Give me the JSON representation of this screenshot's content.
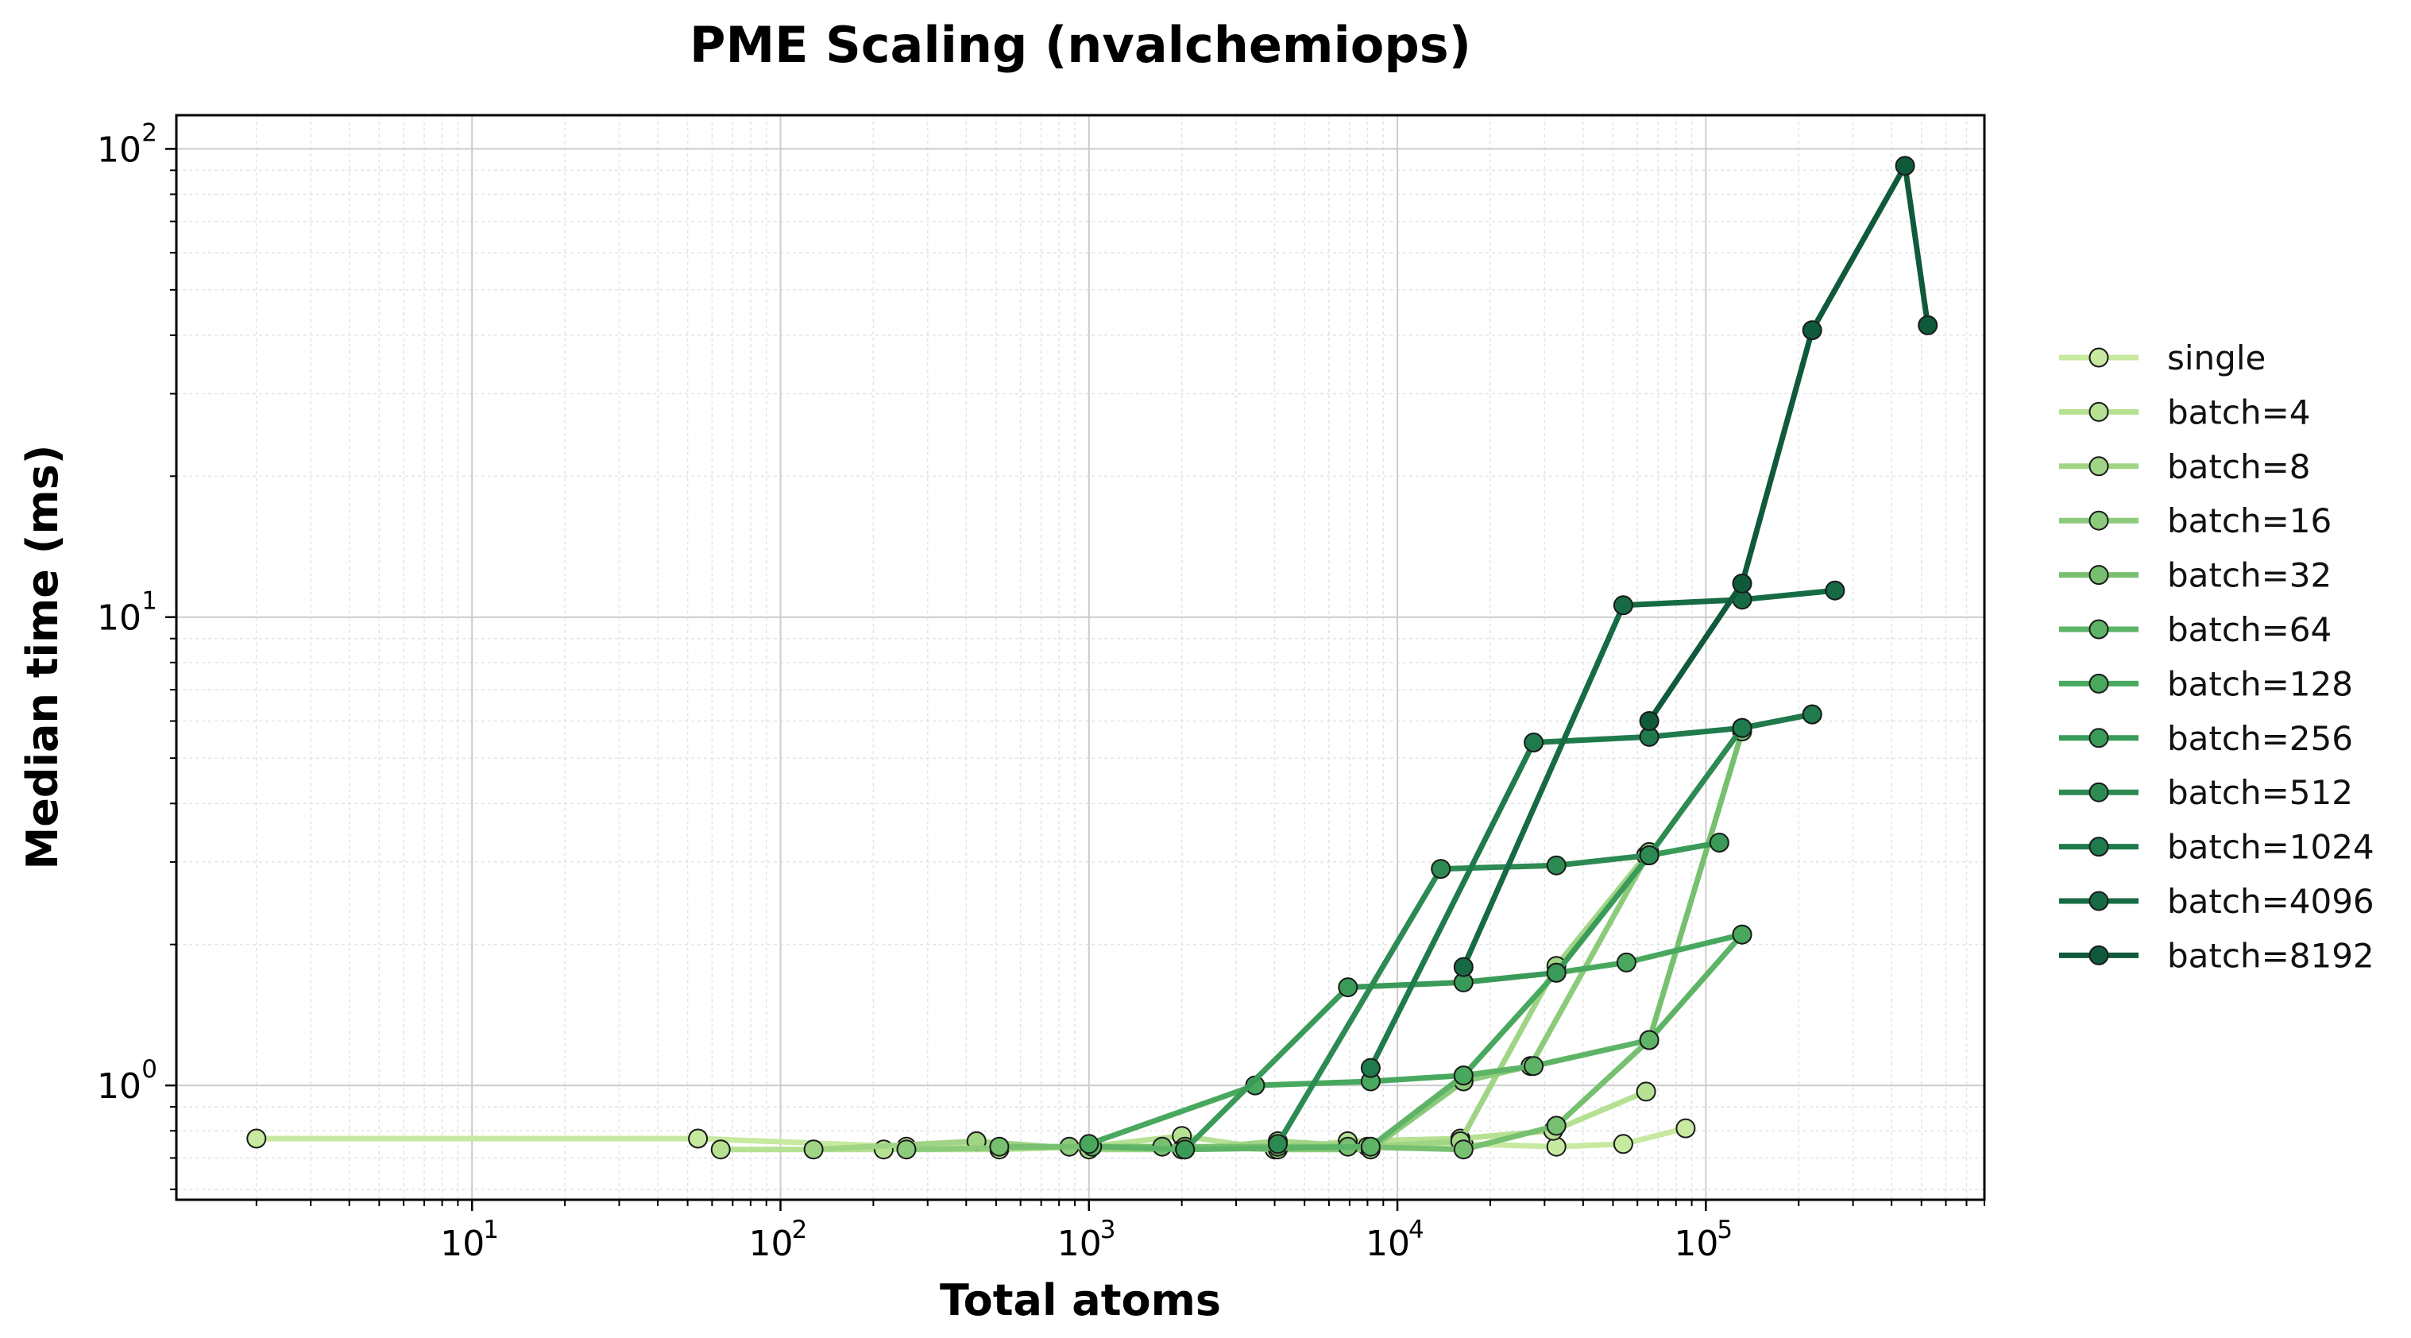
{
  "chart_data": {
    "type": "line",
    "title": "PME Scaling (nvalchemiops)",
    "xlabel": "Total atoms",
    "ylabel": "Median time (ms)",
    "xscale": "log",
    "yscale": "log",
    "xlim": [
      1.1,
      800000
    ],
    "ylim": [
      0.57,
      118
    ],
    "x_ticks": [
      {
        "base": "10",
        "exp": "1",
        "value": 10
      },
      {
        "base": "10",
        "exp": "2",
        "value": 100
      },
      {
        "base": "10",
        "exp": "3",
        "value": 1000
      },
      {
        "base": "10",
        "exp": "4",
        "value": 10000
      },
      {
        "base": "10",
        "exp": "5",
        "value": 100000
      }
    ],
    "y_ticks": [
      {
        "base": "10",
        "exp": "0",
        "value": 1
      },
      {
        "base": "10",
        "exp": "1",
        "value": 10
      },
      {
        "base": "10",
        "exp": "2",
        "value": 100
      }
    ],
    "grid": true,
    "legend_position": "right",
    "series": [
      {
        "name": "single",
        "color": "#c7e9a0",
        "points": [
          [
            2,
            0.77
          ],
          [
            54,
            0.77
          ],
          [
            256,
            0.74
          ],
          [
            1024,
            0.74
          ],
          [
            4096,
            0.74
          ],
          [
            16384,
            0.75
          ],
          [
            32768,
            0.74
          ],
          [
            54000,
            0.75
          ],
          [
            86000,
            0.81
          ]
        ]
      },
      {
        "name": "batch=4",
        "color": "#b6e192",
        "points": [
          [
            64,
            0.73
          ],
          [
            216,
            0.73
          ],
          [
            512,
            0.73
          ],
          [
            1000,
            0.74
          ],
          [
            2000,
            0.78
          ],
          [
            4000,
            0.73
          ],
          [
            6900,
            0.76
          ],
          [
            16000,
            0.77
          ],
          [
            32000,
            0.8
          ],
          [
            64000,
            0.97
          ]
        ]
      },
      {
        "name": "batch=8",
        "color": "#a0d585",
        "points": [
          [
            128,
            0.73
          ],
          [
            432,
            0.76
          ],
          [
            1000,
            0.73
          ],
          [
            2000,
            0.73
          ],
          [
            4096,
            0.76
          ],
          [
            8000,
            0.74
          ],
          [
            16000,
            0.76
          ],
          [
            32768,
            1.8
          ],
          [
            64000,
            3.1
          ]
        ]
      },
      {
        "name": "batch=16",
        "color": "#8ccb7b",
        "points": [
          [
            256,
            0.73
          ],
          [
            864,
            0.74
          ],
          [
            2048,
            0.74
          ],
          [
            4096,
            0.73
          ],
          [
            8192,
            0.73
          ],
          [
            16384,
            1.02
          ],
          [
            27000,
            1.1
          ],
          [
            65536,
            3.15
          ]
        ]
      },
      {
        "name": "batch=32",
        "color": "#76c070",
        "points": [
          [
            512,
            0.74
          ],
          [
            1728,
            0.74
          ],
          [
            4096,
            0.74
          ],
          [
            6912,
            0.74
          ],
          [
            16384,
            0.73
          ],
          [
            32768,
            0.82
          ],
          [
            65536,
            1.25
          ],
          [
            131072,
            5.7
          ]
        ]
      },
      {
        "name": "batch=64",
        "color": "#5eb466",
        "points": [
          [
            1024,
            0.74
          ],
          [
            2048,
            0.73
          ],
          [
            8192,
            0.74
          ],
          [
            16384,
            1.05
          ],
          [
            27648,
            1.1
          ],
          [
            65536,
            1.25
          ],
          [
            131072,
            2.1
          ]
        ]
      },
      {
        "name": "batch=128",
        "color": "#48a85d",
        "points": [
          [
            1000,
            0.75
          ],
          [
            3456,
            1.0
          ],
          [
            8192,
            1.02
          ],
          [
            16384,
            1.05
          ],
          [
            32768,
            1.74
          ],
          [
            55296,
            1.83
          ],
          [
            131072,
            2.1
          ]
        ]
      },
      {
        "name": "batch=256",
        "color": "#3a9a58",
        "points": [
          [
            2048,
            0.73
          ],
          [
            6912,
            1.62
          ],
          [
            16384,
            1.66
          ],
          [
            32768,
            1.74
          ],
          [
            65536,
            3.1
          ],
          [
            110592,
            3.3
          ]
        ]
      },
      {
        "name": "batch=512",
        "color": "#2c8a52",
        "points": [
          [
            4096,
            0.75
          ],
          [
            13824,
            2.9
          ],
          [
            32768,
            2.95
          ],
          [
            65536,
            3.1
          ],
          [
            131072,
            5.8
          ],
          [
            221184,
            6.2
          ]
        ]
      },
      {
        "name": "batch=1024",
        "color": "#1f7a4c",
        "points": [
          [
            8192,
            1.09
          ],
          [
            27648,
            5.4
          ],
          [
            65536,
            5.55
          ],
          [
            131072,
            5.8
          ],
          [
            221184,
            6.2
          ]
        ]
      },
      {
        "name": "batch=4096",
        "color": "#166b45",
        "points": [
          [
            16384,
            1.79
          ],
          [
            54000,
            10.6
          ],
          [
            131072,
            10.9
          ],
          [
            262144,
            11.4
          ]
        ]
      },
      {
        "name": "batch=8192",
        "color": "#0f5a3b",
        "points": [
          [
            65536,
            6.0
          ],
          [
            131072,
            11.8
          ],
          [
            221184,
            41.0
          ],
          [
            442368,
            92.0
          ],
          [
            524288,
            42.0
          ]
        ]
      }
    ]
  }
}
